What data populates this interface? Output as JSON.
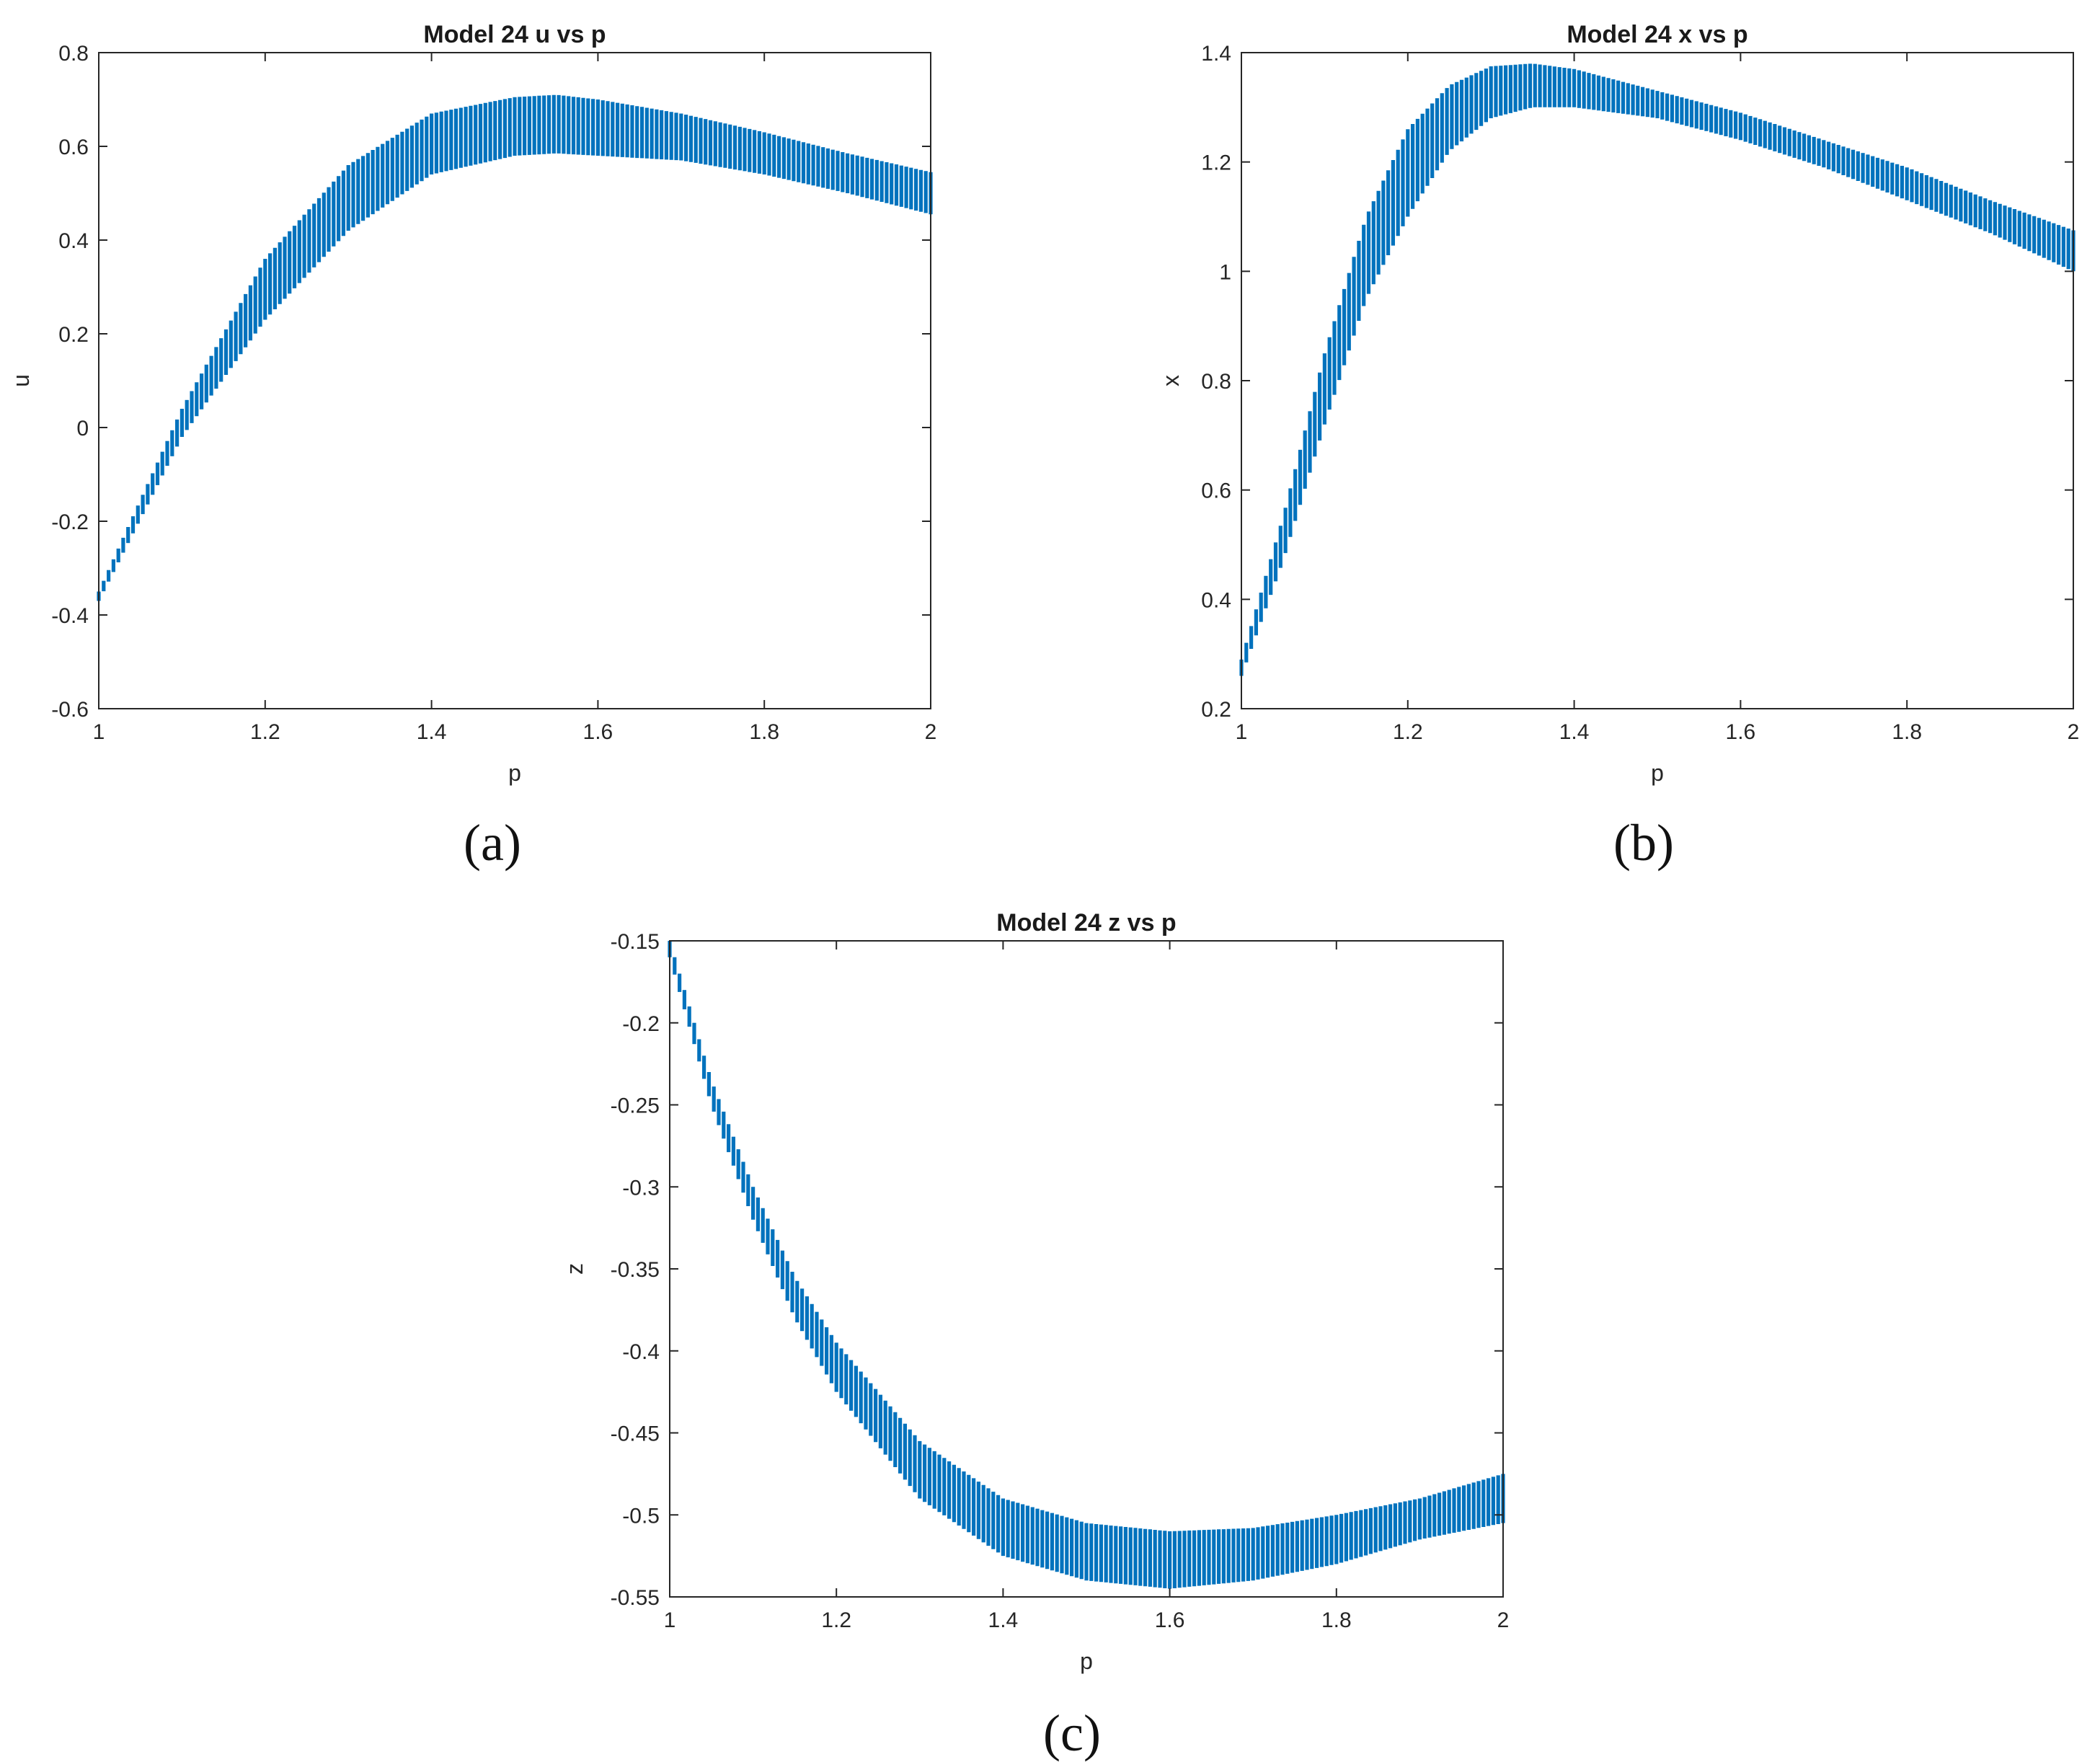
{
  "colors": {
    "band": "#0072BD",
    "axis": "#262626",
    "background": "#ffffff"
  },
  "chart_data": [
    {
      "id": "a",
      "type": "interval",
      "title": "Model 24 u vs p",
      "xlabel": "p",
      "ylabel": "u",
      "panel_label": "(a)",
      "xlim": [
        1,
        2
      ],
      "ylim": [
        -0.6,
        0.8
      ],
      "xticks": [
        1,
        1.2,
        1.4,
        1.6,
        1.8,
        2
      ],
      "xtick_labels": [
        "1",
        "1.2",
        "1.4",
        "1.6",
        "1.8",
        "2"
      ],
      "yticks": [
        -0.6,
        -0.4,
        -0.2,
        0,
        0.2,
        0.4,
        0.6,
        0.8
      ],
      "ytick_labels": [
        "-0.6",
        "-0.4",
        "-0.2",
        "0",
        "0.2",
        "0.4",
        "0.6",
        "0.8"
      ],
      "series": [
        {
          "x": [
            1.0,
            1.1,
            1.2,
            1.3,
            1.4,
            1.5,
            1.55,
            1.6,
            1.7,
            1.8,
            1.9,
            2.0
          ],
          "upper": [
            -0.35,
            0.04,
            0.36,
            0.56,
            0.67,
            0.705,
            0.71,
            0.7,
            0.67,
            0.63,
            0.585,
            0.545
          ],
          "lower": [
            -0.37,
            -0.02,
            0.23,
            0.42,
            0.54,
            0.58,
            0.585,
            0.58,
            0.57,
            0.54,
            0.5,
            0.455
          ]
        }
      ]
    },
    {
      "id": "b",
      "type": "interval",
      "title": "Model 24 x vs p",
      "xlabel": "p",
      "ylabel": "x",
      "panel_label": "(b)",
      "xlim": [
        1,
        2
      ],
      "ylim": [
        0.2,
        1.4
      ],
      "xticks": [
        1,
        1.2,
        1.4,
        1.6,
        1.8,
        2
      ],
      "xtick_labels": [
        "1",
        "1.2",
        "1.4",
        "1.6",
        "1.8",
        "2"
      ],
      "yticks": [
        0.2,
        0.4,
        0.6,
        0.8,
        1,
        1.2,
        1.4
      ],
      "ytick_labels": [
        "0.2",
        "0.4",
        "0.6",
        "0.8",
        "1",
        "1.2",
        "1.4"
      ],
      "series": [
        {
          "x": [
            1.0,
            1.05,
            1.1,
            1.15,
            1.2,
            1.25,
            1.3,
            1.35,
            1.4,
            1.5,
            1.6,
            1.7,
            1.8,
            1.9,
            2.0
          ],
          "upper": [
            0.29,
            0.55,
            0.85,
            1.1,
            1.26,
            1.34,
            1.375,
            1.38,
            1.37,
            1.33,
            1.29,
            1.24,
            1.19,
            1.13,
            1.075
          ],
          "lower": [
            0.26,
            0.47,
            0.72,
            0.95,
            1.1,
            1.22,
            1.28,
            1.3,
            1.3,
            1.28,
            1.24,
            1.19,
            1.13,
            1.07,
            1.0
          ]
        }
      ]
    },
    {
      "id": "c",
      "type": "interval",
      "title": "Model 24 z vs p",
      "xlabel": "p",
      "ylabel": "z",
      "panel_label": "(c)",
      "xlim": [
        1,
        2
      ],
      "ylim": [
        -0.55,
        -0.15
      ],
      "xticks": [
        1,
        1.2,
        1.4,
        1.6,
        1.8,
        2
      ],
      "xtick_labels": [
        "1",
        "1.2",
        "1.4",
        "1.6",
        "1.8",
        "2"
      ],
      "yticks": [
        -0.55,
        -0.5,
        -0.45,
        -0.4,
        -0.35,
        -0.3,
        -0.25,
        -0.2,
        -0.15
      ],
      "ytick_labels": [
        "-0.55",
        "-0.5",
        "-0.45",
        "-0.4",
        "-0.35",
        "-0.3",
        "-0.25",
        "-0.2",
        "-0.15"
      ],
      "series": [
        {
          "x": [
            1.0,
            1.05,
            1.1,
            1.15,
            1.2,
            1.3,
            1.4,
            1.5,
            1.6,
            1.7,
            1.8,
            1.9,
            2.0
          ],
          "upper": [
            -0.15,
            -0.235,
            -0.3,
            -0.355,
            -0.395,
            -0.455,
            -0.49,
            -0.505,
            -0.51,
            -0.508,
            -0.5,
            -0.49,
            -0.475
          ],
          "lower": [
            -0.16,
            -0.25,
            -0.32,
            -0.38,
            -0.425,
            -0.49,
            -0.525,
            -0.54,
            -0.545,
            -0.54,
            -0.53,
            -0.515,
            -0.505
          ]
        }
      ]
    }
  ]
}
